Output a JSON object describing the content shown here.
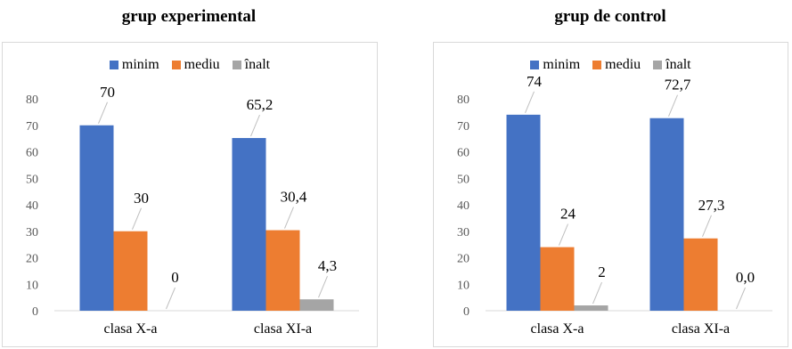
{
  "colors": {
    "minim": "#4472c4",
    "mediu": "#ed7d31",
    "inalt": "#a5a5a5"
  },
  "chart_data": [
    {
      "type": "bar",
      "title": "grup experimental",
      "categories": [
        "clasa X-a",
        "clasa XI-a"
      ],
      "series": [
        {
          "name": "minim",
          "values": [
            70,
            65.2
          ],
          "labels": [
            "70",
            "65,2"
          ]
        },
        {
          "name": "mediu",
          "values": [
            30,
            30.4
          ],
          "labels": [
            "30",
            "30,4"
          ]
        },
        {
          "name": "înalt",
          "values": [
            0,
            4.3
          ],
          "labels": [
            "0",
            "4,3"
          ]
        }
      ],
      "ylim": [
        0,
        80
      ],
      "yticks": [
        0,
        10,
        20,
        30,
        40,
        50,
        60,
        70,
        80
      ],
      "grid": false,
      "legend": "top"
    },
    {
      "type": "bar",
      "title": "grup de control",
      "categories": [
        "clasa X-a",
        "clasa XI-a"
      ],
      "series": [
        {
          "name": "minim",
          "values": [
            74,
            72.7
          ],
          "labels": [
            "74",
            "72,7"
          ]
        },
        {
          "name": "mediu",
          "values": [
            24,
            27.3
          ],
          "labels": [
            "24",
            "27,3"
          ]
        },
        {
          "name": "înalt",
          "values": [
            2,
            0.0
          ],
          "labels": [
            "2",
            "0,0"
          ]
        }
      ],
      "ylim": [
        0,
        80
      ],
      "yticks": [
        0,
        10,
        20,
        30,
        40,
        50,
        60,
        70,
        80
      ],
      "grid": false,
      "legend": "top"
    }
  ]
}
